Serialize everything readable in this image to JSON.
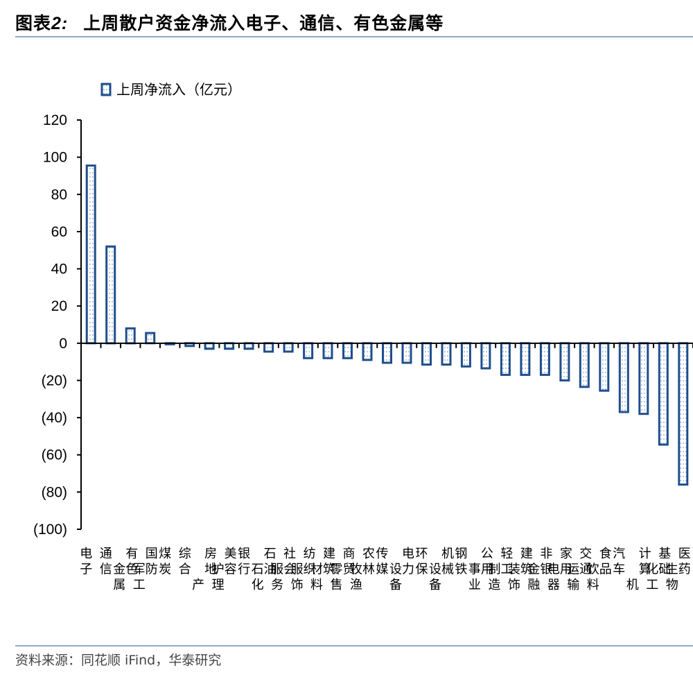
{
  "header": {
    "label": "图表",
    "number": "2:",
    "title": "上周散户资金净流入电子、通信、有色金属等"
  },
  "footer": {
    "source": "资料来源：同花顺 iFind，华泰研究"
  },
  "colors": {
    "bar_border": "#1f4e8c",
    "bar_fill": "#ffffff",
    "bar_dots": "#7fa4d1",
    "axis": "#000000",
    "rule": "#8fa8c2"
  },
  "chart_data": {
    "type": "bar",
    "legend": {
      "label": "上周净流入（亿元）",
      "position": "top-left"
    },
    "ylim": [
      -100,
      120
    ],
    "yticks": [
      120,
      100,
      80,
      60,
      40,
      20,
      0,
      -20,
      -40,
      -60,
      -80,
      -100
    ],
    "ytick_labels": [
      "120",
      "100",
      "80",
      "60",
      "40",
      "20",
      "0",
      "(20)",
      "(40)",
      "(60)",
      "(80)",
      "(100)"
    ],
    "grid": false,
    "categories": [
      "电子",
      "通信",
      "有色金属",
      "国防军工",
      "煤炭",
      "综合",
      "房地产",
      "美容护理",
      "银行",
      "石油石化",
      "社会服务",
      "纺织服饰",
      "建筑材料",
      "商贸零售",
      "农林牧渔",
      "传媒",
      "电力设备",
      "环保",
      "机械设备",
      "钢铁",
      "公用事业",
      "轻工制造",
      "建筑装饰",
      "非银金融",
      "家用电器",
      "交通运输",
      "食品饮料",
      "汽车",
      "计算机",
      "基础化工",
      "医药生物"
    ],
    "series": [
      {
        "name": "上周净流入（亿元）",
        "values": [
          95.5,
          52,
          8,
          5.5,
          -0.5,
          -1.5,
          -3,
          -3,
          -3,
          -4.5,
          -4.5,
          -8,
          -8,
          -8,
          -9,
          -10.5,
          -10.5,
          -11.5,
          -11.5,
          -12.5,
          -13.5,
          -17,
          -17,
          -17,
          -20,
          -23.5,
          -25.5,
          -37,
          -38,
          -54.5,
          -76
        ]
      }
    ]
  }
}
